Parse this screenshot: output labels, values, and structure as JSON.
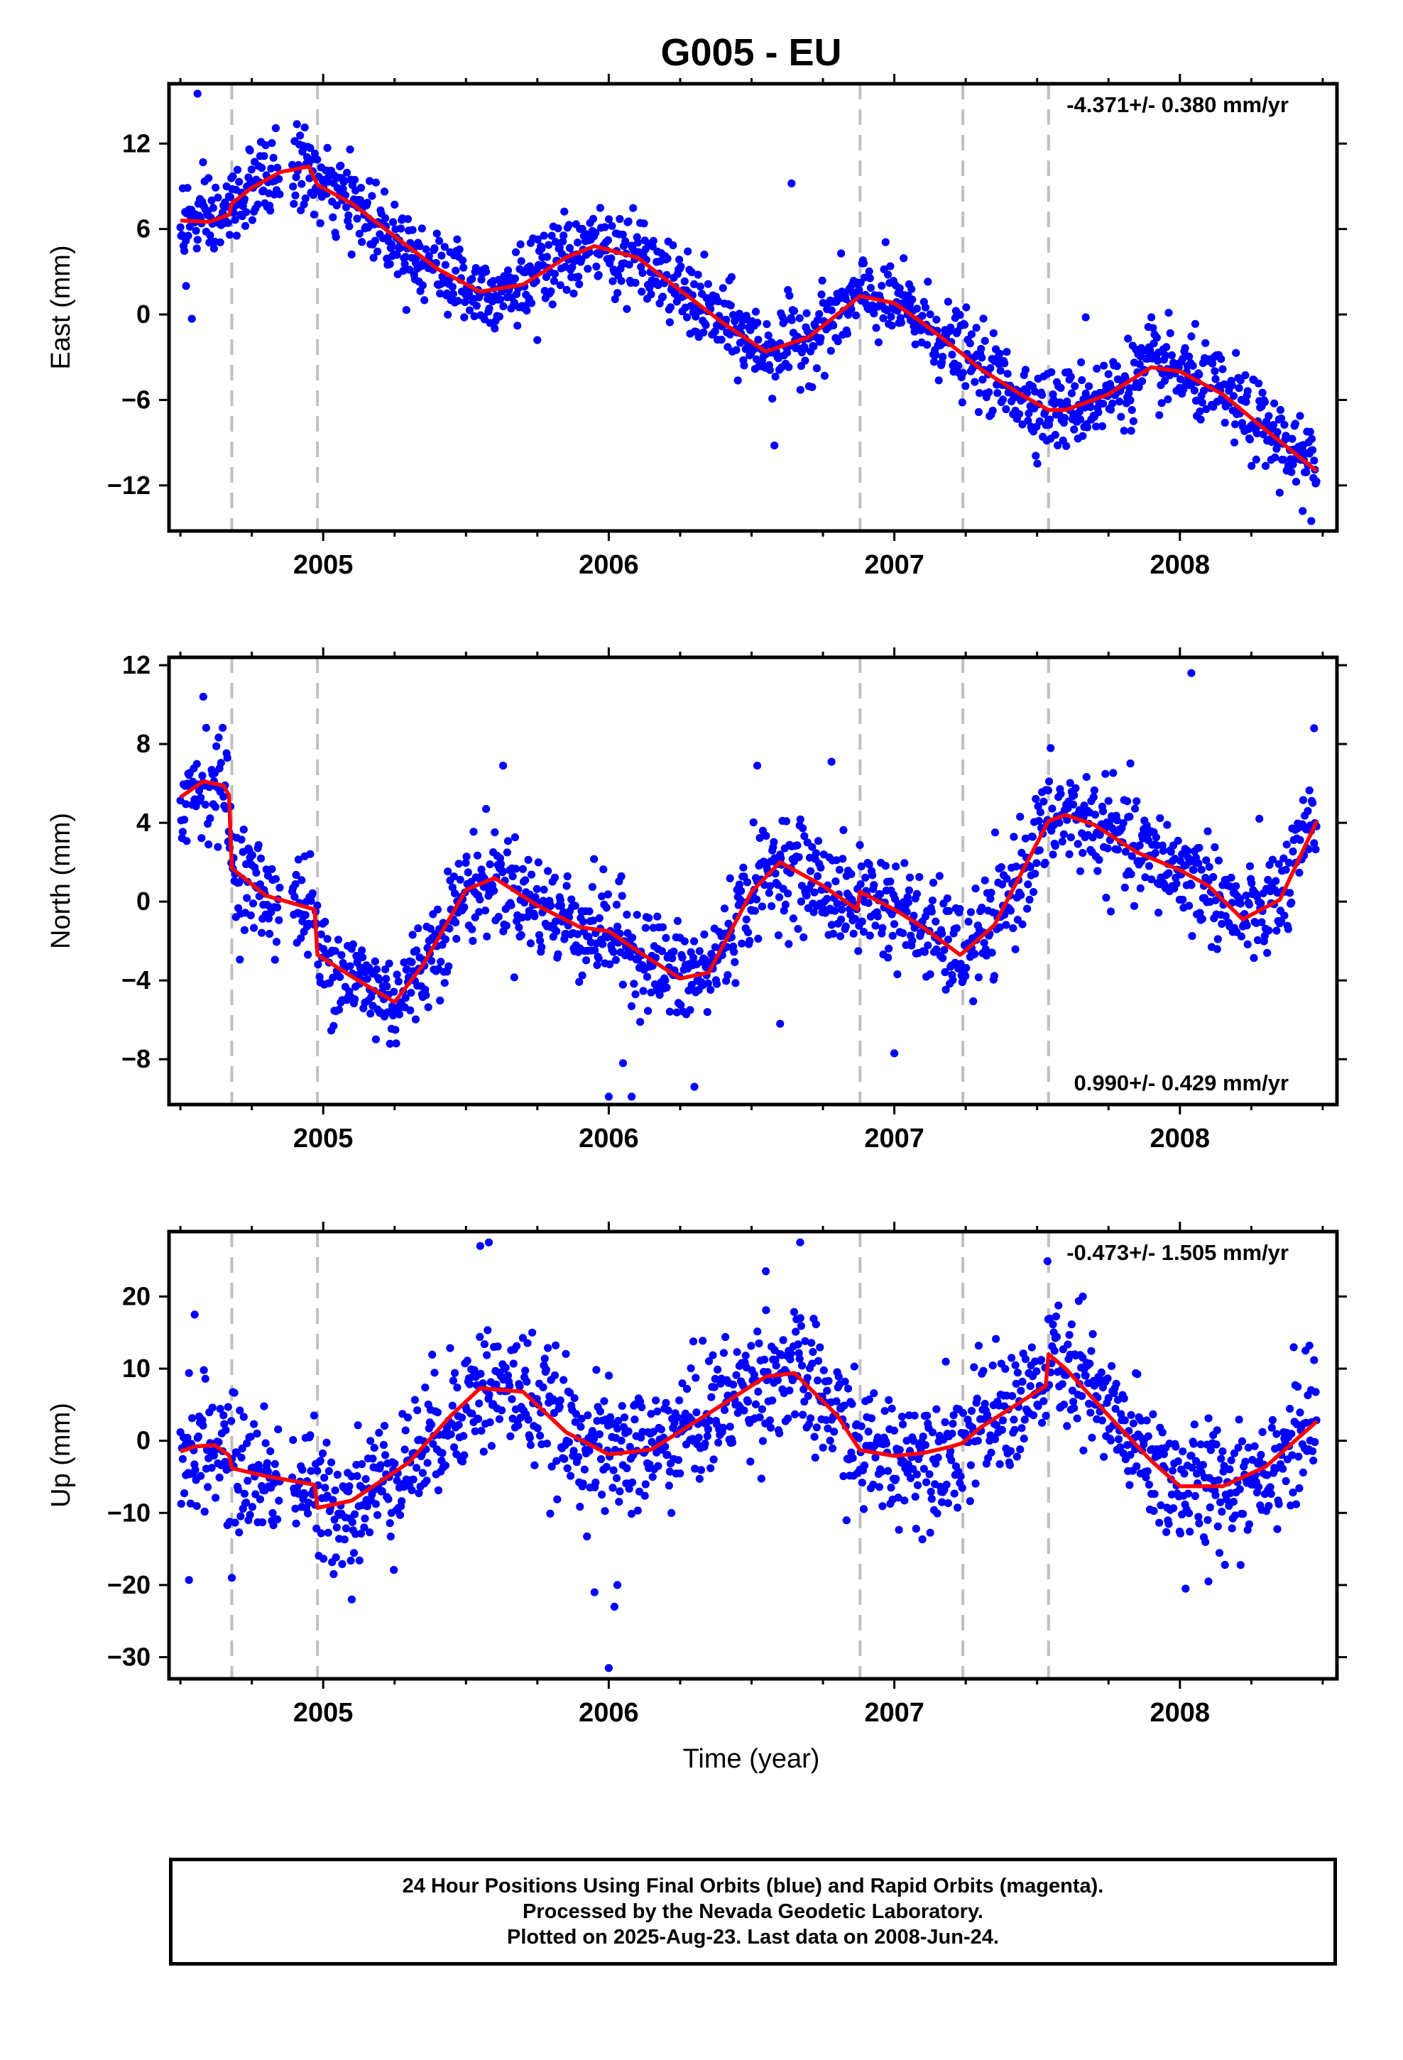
{
  "title": "G005 - EU",
  "xlabel": "Time (year)",
  "footer": {
    "line1": "24 Hour Positions Using Final Orbits (blue) and Rapid Orbits (magenta).",
    "line2": "Processed by the Nevada Geodetic Laboratory.",
    "line3": "Plotted on 2025-Aug-23. Last data on 2008-Jun-24."
  },
  "colors": {
    "points": "#0000ff",
    "model": "#ff0000",
    "breaks": "#c0c0c0",
    "frame": "#000000"
  },
  "chart_data": [
    {
      "type": "scatter",
      "name": "east",
      "ylabel": "East (mm)",
      "rate_label": "-4.371+/- 0.380 mm/yr",
      "rate_position": "top-right",
      "xlim": [
        2004.46,
        2008.55
      ],
      "ylim": [
        -15.2,
        16.2
      ],
      "yticks": [
        -12,
        -6,
        0,
        6,
        12
      ],
      "xticks": [
        2005,
        2006,
        2007,
        2008
      ],
      "breaks": [
        2004.68,
        2004.98,
        2006.88,
        2007.24,
        2007.54
      ],
      "model": {
        "x": [
          2004.5,
          2004.6,
          2004.67,
          2004.68,
          2004.75,
          2004.85,
          2004.95,
          2004.98,
          2005.1,
          2005.25,
          2005.4,
          2005.55,
          2005.7,
          2005.85,
          2005.95,
          2006.1,
          2006.25,
          2006.4,
          2006.55,
          2006.7,
          2006.85,
          2006.88,
          2007.0,
          2007.1,
          2007.24,
          2007.3,
          2007.45,
          2007.54,
          2007.6,
          2007.75,
          2007.9,
          2008.0,
          2008.15,
          2008.3,
          2008.48
        ],
        "y": [
          6.6,
          6.5,
          7.0,
          7.8,
          8.9,
          10.0,
          10.4,
          9.1,
          7.8,
          5.5,
          3.2,
          1.6,
          2.1,
          4.0,
          4.8,
          4.0,
          1.7,
          -0.6,
          -2.6,
          -1.6,
          0.8,
          1.3,
          0.8,
          -0.6,
          -2.8,
          -3.8,
          -5.7,
          -6.7,
          -6.7,
          -5.6,
          -3.7,
          -4.0,
          -5.6,
          -8.1,
          -11.0
        ]
      },
      "scatter_noise": 1.4,
      "outliers": [
        [
          2004.56,
          15.5
        ],
        [
          2004.52,
          2.0
        ],
        [
          2004.54,
          -0.3
        ],
        [
          2005.75,
          -1.8
        ],
        [
          2006.64,
          9.2
        ],
        [
          2006.58,
          -9.2
        ],
        [
          2007.67,
          -0.2
        ],
        [
          2007.9,
          -0.2
        ],
        [
          2008.43,
          -13.8
        ],
        [
          2008.46,
          -14.5
        ]
      ]
    },
    {
      "type": "scatter",
      "name": "north",
      "ylabel": "North (mm)",
      "rate_label": "0.990+/- 0.429 mm/yr",
      "rate_position": "bottom-right",
      "xlim": [
        2004.46,
        2008.55
      ],
      "ylim": [
        -10.3,
        12.4
      ],
      "yticks": [
        -8,
        -4,
        0,
        4,
        8,
        12
      ],
      "xticks": [
        2005,
        2006,
        2007,
        2008
      ],
      "breaks": [
        2004.68,
        2004.98,
        2006.88,
        2007.24,
        2007.54
      ],
      "model": {
        "x": [
          2004.5,
          2004.58,
          2004.65,
          2004.67,
          2004.68,
          2004.8,
          2004.97,
          2004.98,
          2005.1,
          2005.25,
          2005.35,
          2005.5,
          2005.6,
          2005.75,
          2005.9,
          2006.0,
          2006.1,
          2006.25,
          2006.35,
          2006.5,
          2006.6,
          2006.75,
          2006.87,
          2006.88,
          2007.0,
          2007.1,
          2007.23,
          2007.24,
          2007.35,
          2007.54,
          2007.6,
          2007.7,
          2007.85,
          2008.0,
          2008.1,
          2008.22,
          2008.35,
          2008.48
        ],
        "y": [
          5.3,
          6.1,
          5.9,
          5.4,
          1.7,
          0.3,
          -0.4,
          -2.7,
          -3.8,
          -5.1,
          -3.2,
          0.6,
          1.2,
          -0.2,
          -1.3,
          -1.5,
          -2.5,
          -3.9,
          -3.6,
          0.5,
          2.0,
          0.8,
          -0.4,
          0.5,
          -0.4,
          -1.3,
          -2.7,
          -2.6,
          -1.2,
          4.1,
          4.4,
          3.9,
          2.5,
          1.6,
          0.8,
          -0.9,
          0.1,
          4.1
        ]
      },
      "scatter_noise": 1.3,
      "outliers": [
        [
          2004.58,
          10.4
        ],
        [
          2005.63,
          6.9
        ],
        [
          2006.0,
          -9.9
        ],
        [
          2006.08,
          -9.9
        ],
        [
          2006.52,
          6.9
        ],
        [
          2006.78,
          7.1
        ],
        [
          2006.05,
          -8.2
        ],
        [
          2006.3,
          -9.4
        ],
        [
          2008.04,
          11.6
        ],
        [
          2008.47,
          8.8
        ],
        [
          2006.6,
          -6.2
        ],
        [
          2007.0,
          -7.7
        ]
      ]
    },
    {
      "type": "scatter",
      "name": "up",
      "ylabel": "Up (mm)",
      "rate_label": "-0.473+/- 1.505 mm/yr",
      "rate_position": "top-right",
      "xlim": [
        2004.46,
        2008.55
      ],
      "ylim": [
        -33.0,
        29.0
      ],
      "yticks": [
        -30,
        -20,
        -10,
        0,
        10,
        20
      ],
      "xticks": [
        2005,
        2006,
        2007,
        2008
      ],
      "breaks": [
        2004.68,
        2004.98,
        2006.88,
        2007.24,
        2007.54
      ],
      "model": {
        "x": [
          2004.5,
          2004.55,
          2004.62,
          2004.67,
          2004.68,
          2004.8,
          2004.97,
          2004.98,
          2005.1,
          2005.3,
          2005.45,
          2005.55,
          2005.7,
          2005.85,
          2006.0,
          2006.15,
          2006.35,
          2006.55,
          2006.65,
          2006.8,
          2006.88,
          2007.0,
          2007.1,
          2007.2,
          2007.24,
          2007.3,
          2007.53,
          2007.54,
          2007.6,
          2007.75,
          2007.9,
          2008.0,
          2008.15,
          2008.3,
          2008.48
        ],
        "y": [
          -1.5,
          -0.8,
          -0.6,
          -2.0,
          -3.8,
          -4.9,
          -6.1,
          -9.3,
          -8.3,
          -3.0,
          3.6,
          7.3,
          6.8,
          1.2,
          -1.9,
          -1.2,
          3.8,
          8.9,
          9.4,
          3.5,
          -1.3,
          -2.1,
          -1.7,
          -0.8,
          -0.3,
          1.8,
          7.6,
          12.0,
          10.0,
          3.5,
          -2.8,
          -6.3,
          -6.3,
          -3.6,
          2.7
        ]
      },
      "scatter_noise": 4.4,
      "outliers": [
        [
          2004.55,
          17.5
        ],
        [
          2004.53,
          -19.3
        ],
        [
          2004.68,
          -19.0
        ],
        [
          2005.55,
          27.0
        ],
        [
          2005.58,
          27.5
        ],
        [
          2005.95,
          -21.0
        ],
        [
          2006.02,
          -23.0
        ],
        [
          2006.0,
          -31.5
        ],
        [
          2006.67,
          27.5
        ],
        [
          2006.55,
          23.5
        ],
        [
          2007.66,
          20.0
        ],
        [
          2008.02,
          -20.5
        ],
        [
          2008.1,
          -19.5
        ],
        [
          2005.1,
          -22.0
        ],
        [
          2006.03,
          -20.0
        ]
      ]
    }
  ]
}
